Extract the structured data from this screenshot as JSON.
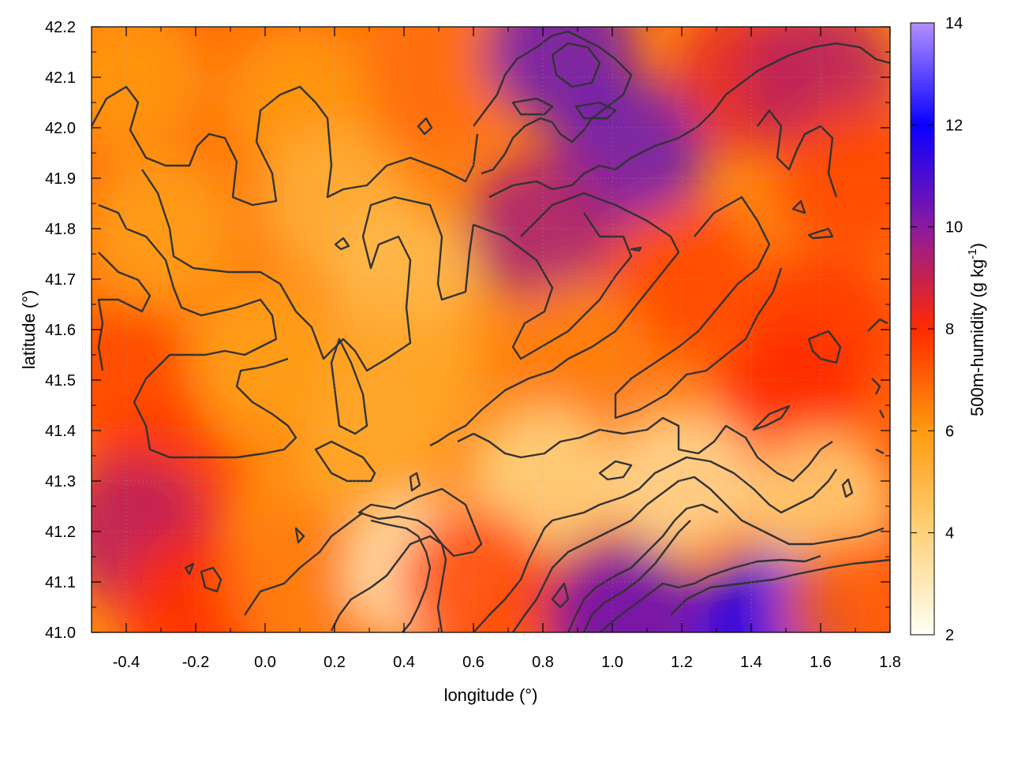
{
  "chart_data": {
    "type": "heatmap",
    "title": "",
    "xlabel": "longitude (°)",
    "ylabel": "latitude (°)",
    "xlim": [
      -0.5,
      1.8
    ],
    "ylim": [
      41.0,
      42.2
    ],
    "xticks": [
      {
        "value": -0.4,
        "label": "-0.4"
      },
      {
        "value": -0.2,
        "label": "-0.2"
      },
      {
        "value": 0.0,
        "label": "0.0"
      },
      {
        "value": 0.2,
        "label": "0.2"
      },
      {
        "value": 0.4,
        "label": "0.4"
      },
      {
        "value": 0.6,
        "label": "0.6"
      },
      {
        "value": 0.8,
        "label": "0.8"
      },
      {
        "value": 1.0,
        "label": "1.0"
      },
      {
        "value": 1.2,
        "label": "1.2"
      },
      {
        "value": 1.4,
        "label": "1.4"
      },
      {
        "value": 1.6,
        "label": "1.6"
      },
      {
        "value": 1.8,
        "label": "1.8"
      }
    ],
    "yticks": [
      {
        "value": 41.0,
        "label": "41.0"
      },
      {
        "value": 41.1,
        "label": "41.1"
      },
      {
        "value": 41.2,
        "label": "41.2"
      },
      {
        "value": 41.3,
        "label": "41.3"
      },
      {
        "value": 41.4,
        "label": "41.4"
      },
      {
        "value": 41.5,
        "label": "41.5"
      },
      {
        "value": 41.6,
        "label": "41.6"
      },
      {
        "value": 41.7,
        "label": "41.7"
      },
      {
        "value": 41.8,
        "label": "41.8"
      },
      {
        "value": 41.9,
        "label": "41.9"
      },
      {
        "value": 42.0,
        "label": "42.0"
      },
      {
        "value": 42.1,
        "label": "42.1"
      },
      {
        "value": 42.2,
        "label": "42.2"
      }
    ],
    "grid": true,
    "colorbar": {
      "label": "500m-humidity (g kg",
      "label_sup": "-1",
      "label_end": ")",
      "range": [
        2,
        14
      ],
      "ticks": [
        {
          "value": 2,
          "label": "2"
        },
        {
          "value": 4,
          "label": "4"
        },
        {
          "value": 6,
          "label": "6"
        },
        {
          "value": 8,
          "label": "8"
        },
        {
          "value": 10,
          "label": "10"
        },
        {
          "value": 12,
          "label": "12"
        },
        {
          "value": 14,
          "label": "14"
        }
      ],
      "colors": [
        "#fffff5",
        "#ffd27a",
        "#ff9a10",
        "#ff2a00",
        "#8a1aa0",
        "#0a00ff",
        "#b090ff"
      ]
    },
    "contour_color": "#333333",
    "field_samples": [
      {
        "lon": -0.4,
        "lat": 42.1,
        "value": 6.0
      },
      {
        "lon": 0.1,
        "lat": 42.05,
        "value": 6.0
      },
      {
        "lon": 0.5,
        "lat": 42.1,
        "value": 6.8
      },
      {
        "lon": 0.85,
        "lat": 42.15,
        "value": 10.5
      },
      {
        "lon": 1.05,
        "lat": 41.95,
        "value": 10.5
      },
      {
        "lon": 1.4,
        "lat": 42.1,
        "value": 8.5
      },
      {
        "lon": 1.6,
        "lat": 42.1,
        "value": 9.2
      },
      {
        "lon": 1.7,
        "lat": 41.9,
        "value": 7.5
      },
      {
        "lon": -0.3,
        "lat": 41.8,
        "value": 5.8
      },
      {
        "lon": 0.2,
        "lat": 41.85,
        "value": 5.2
      },
      {
        "lon": 0.4,
        "lat": 41.7,
        "value": 4.8
      },
      {
        "lon": 0.8,
        "lat": 41.8,
        "value": 9.5
      },
      {
        "lon": 1.2,
        "lat": 41.7,
        "value": 7.5
      },
      {
        "lon": 1.6,
        "lat": 41.6,
        "value": 7.8
      },
      {
        "lon": -0.4,
        "lat": 41.5,
        "value": 7.5
      },
      {
        "lon": 0.0,
        "lat": 41.55,
        "value": 5.8
      },
      {
        "lon": 0.4,
        "lat": 41.5,
        "value": 5.5
      },
      {
        "lon": 0.9,
        "lat": 41.55,
        "value": 6.5
      },
      {
        "lon": 1.5,
        "lat": 41.45,
        "value": 8.0
      },
      {
        "lon": -0.3,
        "lat": 41.3,
        "value": 7.8
      },
      {
        "lon": 0.3,
        "lat": 41.35,
        "value": 5.5
      },
      {
        "lon": 0.8,
        "lat": 41.3,
        "value": 3.8
      },
      {
        "lon": 1.2,
        "lat": 41.3,
        "value": 3.5
      },
      {
        "lon": 1.6,
        "lat": 41.25,
        "value": 4.0
      },
      {
        "lon": -0.38,
        "lat": 41.2,
        "value": 9.2
      },
      {
        "lon": -0.2,
        "lat": 41.05,
        "value": 8.0
      },
      {
        "lon": 0.1,
        "lat": 41.1,
        "value": 6.5
      },
      {
        "lon": 0.45,
        "lat": 41.12,
        "value": 3.0
      },
      {
        "lon": 0.6,
        "lat": 41.1,
        "value": 7.5
      },
      {
        "lon": 1.0,
        "lat": 41.05,
        "value": 8.8
      },
      {
        "lon": 1.05,
        "lat": 41.02,
        "value": 10.5
      },
      {
        "lon": 1.45,
        "lat": 41.01,
        "value": 12.0
      },
      {
        "lon": 1.7,
        "lat": 41.05,
        "value": 7.0
      }
    ]
  }
}
